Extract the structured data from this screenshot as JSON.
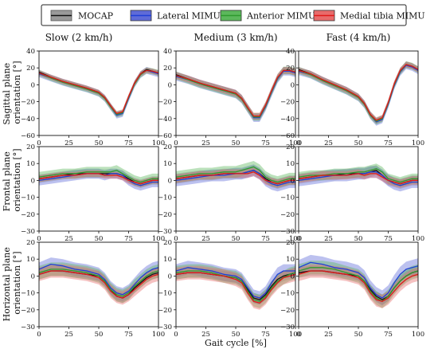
{
  "chart_data": {
    "type": "line",
    "legend": {
      "placement": "top-center",
      "entries": [
        {
          "name": "MOCAP",
          "color": "#111111",
          "band": "#9a9a9a"
        },
        {
          "name": "Lateral MIMU",
          "color": "#1f3fd6",
          "band": "#5f6bd8"
        },
        {
          "name": "Anterior MIMU",
          "color": "#2e9a2e",
          "band": "#5cb85c"
        },
        {
          "name": "Medial tibia MIMU",
          "color": "#e01818",
          "band": "#e86b6b"
        }
      ]
    },
    "columns": [
      "Slow (2 km/h)",
      "Medium (3 km/h)",
      "Fast (4 km/h)"
    ],
    "rows": [
      {
        "ylabel": [
          "Sagittal plane",
          "orientation [°]"
        ],
        "ylim": [
          -60,
          40
        ],
        "yticks": [
          "40",
          "20",
          "0",
          "−20",
          "−40",
          "−60"
        ]
      },
      {
        "ylabel": [
          "Frontal plane",
          "orientation [°]"
        ],
        "ylim": [
          -30,
          20
        ],
        "yticks": [
          "20",
          "10",
          "0",
          "−10",
          "−20",
          "−30"
        ]
      },
      {
        "ylabel": [
          "Horizontal plane",
          "orientation [°]"
        ],
        "ylim": [
          -30,
          20
        ],
        "yticks": [
          "20",
          "10",
          "0",
          "−10",
          "−20",
          "−30"
        ]
      }
    ],
    "xlabel": "Gait cycle [%]",
    "xlim": [
      0,
      100
    ],
    "xticks": [
      "0",
      "25",
      "50",
      "75",
      "100"
    ],
    "x": [
      0,
      10,
      20,
      30,
      40,
      50,
      55,
      60,
      65,
      70,
      75,
      80,
      85,
      90,
      95,
      100
    ],
    "panels": [
      {
        "row": 0,
        "col": 0,
        "series": [
          {
            "name": "MOCAP",
            "values": [
              15,
              9,
              4,
              0,
              -4,
              -9,
              -15,
              -25,
              -35,
              -33,
              -15,
              2,
              13,
              18,
              16,
              14
            ],
            "sd": 3
          },
          {
            "name": "Lateral MIMU",
            "values": [
              13,
              8,
              3,
              -1,
              -5,
              -10,
              -16,
              -26,
              -36,
              -34,
              -16,
              1,
              12,
              17,
              15,
              13
            ],
            "sd": 4
          },
          {
            "name": "Anterior MIMU",
            "values": [
              14,
              8,
              3,
              -1,
              -5,
              -10,
              -16,
              -26,
              -35,
              -33,
              -15,
              1,
              12,
              17,
              16,
              14
            ],
            "sd": 3.5
          },
          {
            "name": "Medial tibia MIMU",
            "values": [
              14,
              9,
              4,
              0,
              -4,
              -9,
              -15,
              -25,
              -34,
              -32,
              -14,
              2,
              13,
              17,
              16,
              14
            ],
            "sd": 3
          }
        ]
      },
      {
        "row": 0,
        "col": 1,
        "series": [
          {
            "name": "MOCAP",
            "values": [
              12,
              7,
              2,
              -2,
              -6,
              -10,
              -16,
              -27,
              -38,
              -38,
              -25,
              -8,
              8,
              17,
              17,
              15
            ],
            "sd": 4
          },
          {
            "name": "Lateral MIMU",
            "values": [
              10,
              6,
              1,
              -3,
              -7,
              -11,
              -17,
              -28,
              -39,
              -39,
              -26,
              -9,
              7,
              16,
              16,
              14
            ],
            "sd": 5
          },
          {
            "name": "Anterior MIMU",
            "values": [
              11,
              6,
              1,
              -3,
              -7,
              -11,
              -17,
              -28,
              -38,
              -38,
              -25,
              -8,
              8,
              17,
              17,
              15
            ],
            "sd": 4.5
          },
          {
            "name": "Medial tibia MIMU",
            "values": [
              11,
              7,
              2,
              -2,
              -6,
              -10,
              -16,
              -27,
              -37,
              -37,
              -24,
              -7,
              9,
              17,
              17,
              15
            ],
            "sd": 4
          }
        ]
      },
      {
        "row": 0,
        "col": 2,
        "series": [
          {
            "name": "MOCAP",
            "values": [
              18,
              13,
              6,
              0,
              -6,
              -14,
              -22,
              -35,
              -43,
              -40,
              -22,
              0,
              16,
              24,
              22,
              18
            ],
            "sd": 3.5
          },
          {
            "name": "Lateral MIMU",
            "values": [
              16,
              12,
              5,
              -1,
              -7,
              -15,
              -23,
              -36,
              -44,
              -41,
              -23,
              -1,
              15,
              23,
              21,
              17
            ],
            "sd": 4.5
          },
          {
            "name": "Anterior MIMU",
            "values": [
              17,
              12,
              5,
              -1,
              -7,
              -15,
              -23,
              -36,
              -43,
              -40,
              -22,
              0,
              16,
              24,
              22,
              18
            ],
            "sd": 4
          },
          {
            "name": "Medial tibia MIMU",
            "values": [
              17,
              13,
              6,
              0,
              -6,
              -14,
              -22,
              -35,
              -42,
              -39,
              -21,
              1,
              17,
              24,
              22,
              18
            ],
            "sd": 3.5
          }
        ]
      },
      {
        "row": 1,
        "col": 0,
        "series": [
          {
            "name": "MOCAP",
            "values": [
              1,
              2,
              3,
              4,
              4,
              4,
              4,
              4,
              4,
              3,
              1,
              -1,
              -2,
              -1,
              0,
              0
            ],
            "sd": 2.5
          },
          {
            "name": "Lateral MIMU",
            "values": [
              0,
              1,
              2,
              3,
              4,
              4,
              3,
              4,
              4,
              3,
              0,
              -2,
              -3,
              -2,
              -1,
              -1
            ],
            "sd": 3
          },
          {
            "name": "Anterior MIMU",
            "values": [
              2,
              3,
              4,
              4,
              5,
              5,
              5,
              5,
              6,
              4,
              2,
              0,
              -1,
              0,
              1,
              1
            ],
            "sd": 3
          },
          {
            "name": "Medial tibia MIMU",
            "values": [
              1,
              2,
              3,
              3,
              4,
              4,
              3,
              3,
              3,
              2,
              0,
              -1,
              -2,
              -1,
              0,
              0
            ],
            "sd": 2
          }
        ]
      },
      {
        "row": 1,
        "col": 1,
        "series": [
          {
            "name": "MOCAP",
            "values": [
              1,
              2,
              3,
              3,
              4,
              4,
              4,
              5,
              6,
              4,
              1,
              -1,
              -2,
              -1,
              0,
              0
            ],
            "sd": 3
          },
          {
            "name": "Lateral MIMU",
            "values": [
              0,
              1,
              2,
              3,
              3,
              4,
              4,
              5,
              6,
              4,
              0,
              -2,
              -3,
              -2,
              -1,
              -1
            ],
            "sd": 3.5
          },
          {
            "name": "Anterior MIMU",
            "values": [
              2,
              3,
              4,
              4,
              5,
              5,
              6,
              7,
              8,
              6,
              2,
              0,
              -1,
              0,
              1,
              1
            ],
            "sd": 3.5
          },
          {
            "name": "Medial tibia MIMU",
            "values": [
              1,
              2,
              3,
              3,
              4,
              4,
              4,
              4,
              5,
              3,
              0,
              -1,
              -2,
              -1,
              0,
              0
            ],
            "sd": 2.5
          }
        ]
      },
      {
        "row": 1,
        "col": 2,
        "series": [
          {
            "name": "MOCAP",
            "values": [
              1,
              2,
              3,
              3,
              4,
              4,
              4,
              5,
              6,
              3,
              0,
              -1,
              -2,
              -1,
              0,
              0
            ],
            "sd": 3
          },
          {
            "name": "Lateral MIMU",
            "values": [
              0,
              1,
              2,
              3,
              3,
              4,
              4,
              5,
              5,
              3,
              0,
              -2,
              -3,
              -2,
              -1,
              -1
            ],
            "sd": 3.5
          },
          {
            "name": "Anterior MIMU",
            "values": [
              2,
              3,
              3,
              4,
              4,
              5,
              5,
              6,
              7,
              5,
              1,
              0,
              -1,
              0,
              1,
              1
            ],
            "sd": 3
          },
          {
            "name": "Medial tibia MIMU",
            "values": [
              1,
              2,
              3,
              3,
              3,
              4,
              3,
              4,
              4,
              2,
              0,
              -1,
              -2,
              -1,
              0,
              0
            ],
            "sd": 2.5
          }
        ]
      },
      {
        "row": 2,
        "col": 0,
        "series": [
          {
            "name": "MOCAP",
            "values": [
              1,
              3,
              3,
              2,
              1,
              0,
              -3,
              -8,
              -12,
              -13,
              -11,
              -7,
              -4,
              -1,
              1,
              2
            ],
            "sd": 3
          },
          {
            "name": "Lateral MIMU",
            "values": [
              4,
              7,
              6,
              4,
              3,
              1,
              -2,
              -7,
              -10,
              -11,
              -9,
              -5,
              -1,
              2,
              4,
              5
            ],
            "sd": 4
          },
          {
            "name": "Anterior MIMU",
            "values": [
              2,
              4,
              4,
              3,
              2,
              0,
              -3,
              -8,
              -11,
              -12,
              -10,
              -6,
              -3,
              0,
              2,
              3
            ],
            "sd": 4
          },
          {
            "name": "Medial tibia MIMU",
            "values": [
              1,
              3,
              3,
              2,
              1,
              -1,
              -4,
              -9,
              -12,
              -13,
              -11,
              -8,
              -5,
              -2,
              0,
              1
            ],
            "sd": 4
          }
        ]
      },
      {
        "row": 2,
        "col": 1,
        "series": [
          {
            "name": "MOCAP",
            "values": [
              1,
              2,
              2,
              1,
              0,
              -1,
              -3,
              -8,
              -13,
              -14,
              -11,
              -6,
              -2,
              0,
              1,
              2
            ],
            "sd": 3
          },
          {
            "name": "Lateral MIMU",
            "values": [
              3,
              5,
              4,
              3,
              1,
              0,
              -2,
              -7,
              -12,
              -13,
              -10,
              -4,
              1,
              3,
              3,
              3
            ],
            "sd": 4
          },
          {
            "name": "Anterior MIMU",
            "values": [
              2,
              3,
              3,
              2,
              0,
              -1,
              -3,
              -9,
              -14,
              -15,
              -12,
              -7,
              -3,
              -1,
              1,
              2
            ],
            "sd": 4
          },
          {
            "name": "Medial tibia MIMU",
            "values": [
              1,
              2,
              2,
              1,
              0,
              -2,
              -4,
              -10,
              -15,
              -16,
              -13,
              -8,
              -4,
              -1,
              0,
              1
            ],
            "sd": 4
          }
        ]
      },
      {
        "row": 2,
        "col": 2,
        "series": [
          {
            "name": "MOCAP",
            "values": [
              2,
              3,
              3,
              2,
              1,
              0,
              -3,
              -8,
              -12,
              -14,
              -12,
              -7,
              -3,
              0,
              2,
              3
            ],
            "sd": 3
          },
          {
            "name": "Lateral MIMU",
            "values": [
              5,
              8,
              7,
              5,
              4,
              2,
              -1,
              -7,
              -11,
              -13,
              -10,
              -4,
              1,
              4,
              5,
              6
            ],
            "sd": 4.5
          },
          {
            "name": "Anterior MIMU",
            "values": [
              3,
              5,
              5,
              4,
              2,
              0,
              -3,
              -9,
              -13,
              -15,
              -12,
              -7,
              -3,
              0,
              2,
              3
            ],
            "sd": 4
          },
          {
            "name": "Medial tibia MIMU",
            "values": [
              1,
              3,
              3,
              2,
              1,
              -1,
              -4,
              -10,
              -14,
              -15,
              -13,
              -9,
              -5,
              -2,
              0,
              1
            ],
            "sd": 4
          }
        ]
      }
    ]
  }
}
